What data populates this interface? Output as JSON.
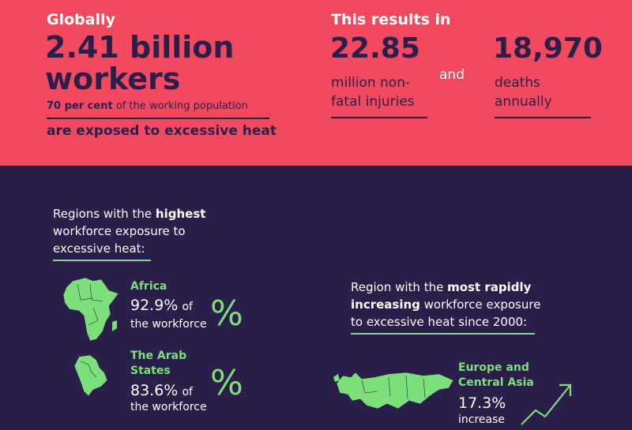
{
  "top": {
    "globally_label": "Globally",
    "workers_count": "2.41 billion",
    "workers_word": "workers",
    "pct_bold": "70 per cent",
    "pct_rest": "of the working population",
    "exposed": "are exposed to excessive heat",
    "results_label": "This results in",
    "injuries_value": "22.85",
    "injuries_line1": "million non-",
    "injuries_line2": "fatal injuries",
    "and_word": "and",
    "deaths_value": "18,970",
    "deaths_line1": "deaths",
    "deaths_line2": "annually"
  },
  "highest": {
    "line1_pre": "Regions with the ",
    "line1_bold": "highest",
    "line2": "workforce exposure to",
    "line3": "excessive heat:"
  },
  "africa": {
    "name": "Africa",
    "value": "92.9%",
    "of": "of",
    "workforce": "the workforce",
    "symbol": "%"
  },
  "arab": {
    "name_line1": "The Arab",
    "name_line2": "States",
    "value": "83.6%",
    "of": "of",
    "workforce": "the workforce",
    "symbol": "%"
  },
  "rapid": {
    "line1_pre": "Region with the ",
    "line1_bold": "most rapidly",
    "line2_bold": "increasing",
    "line2_rest": " workforce exposure",
    "line3": "to excessive heat since 2000:"
  },
  "europe": {
    "name_line1": "Europe and",
    "name_line2": "Central Asia",
    "value": "17.3%",
    "increase": "increase"
  },
  "colors": {
    "coral": "#f2495e",
    "navy": "#2b1e4a",
    "green": "#7ce07a"
  }
}
